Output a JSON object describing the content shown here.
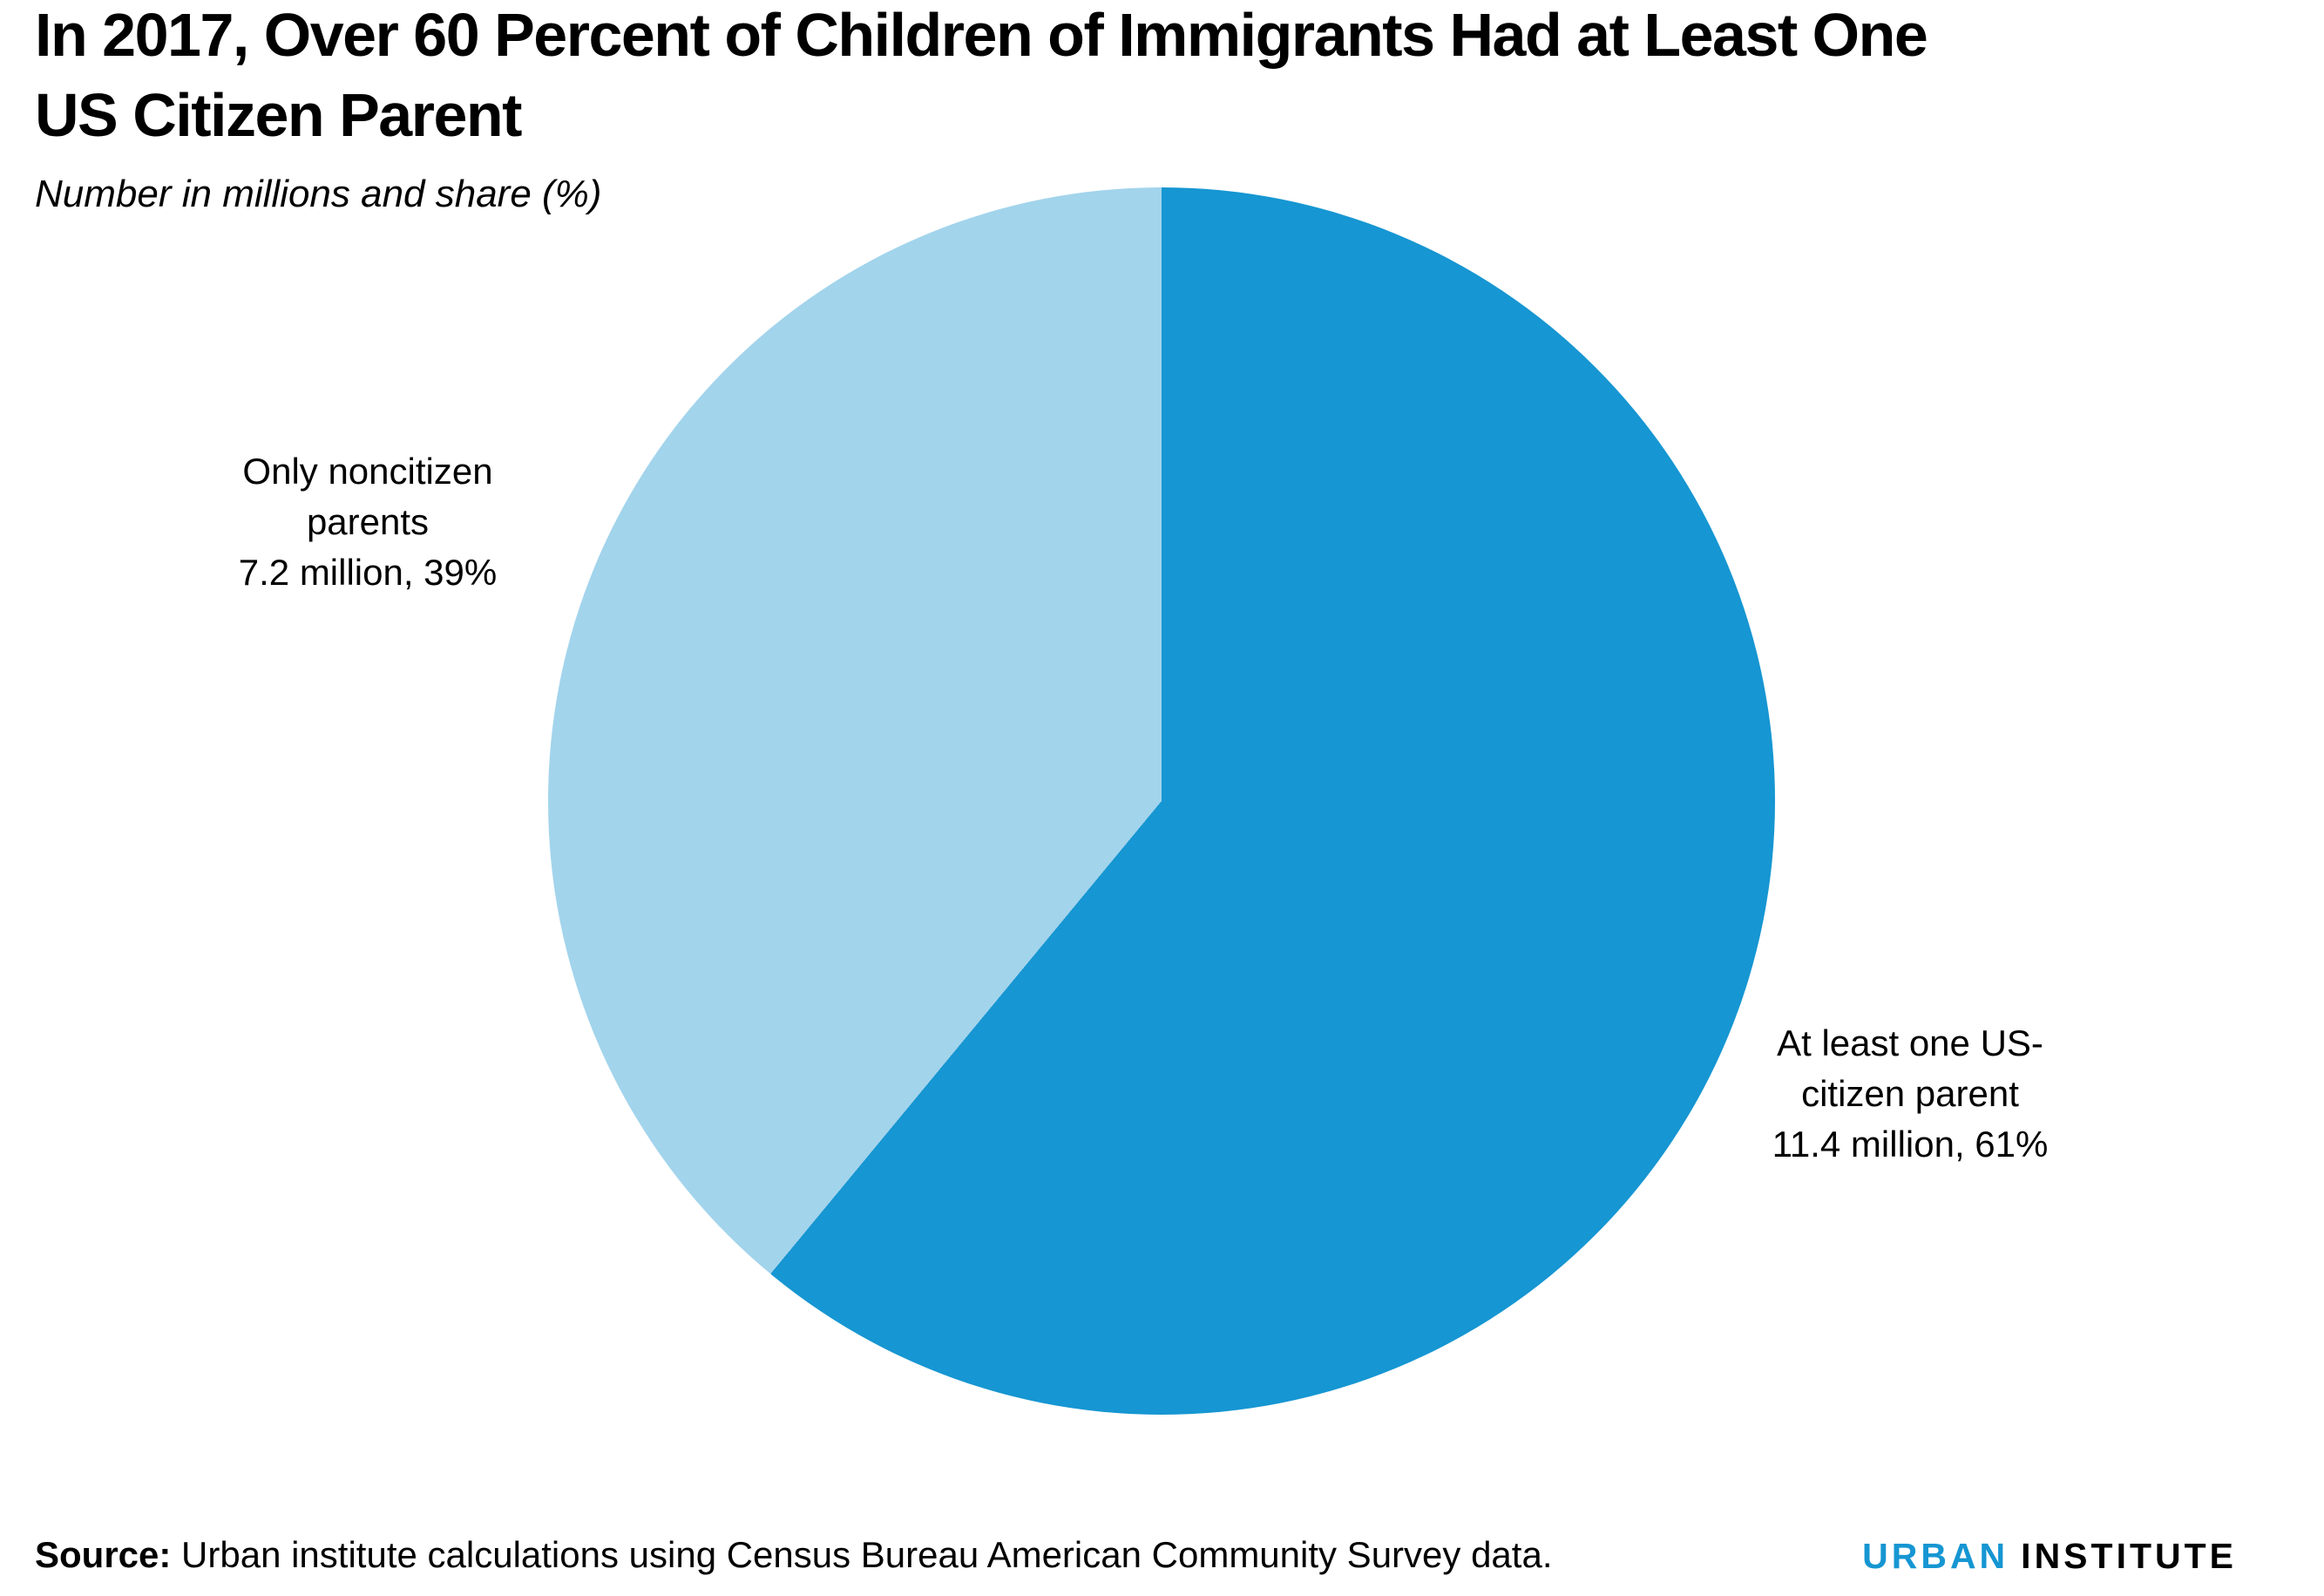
{
  "header": {
    "title_lines": [
      "In 2017, Over 60 Percent of Children of Immigrants Had at Least One",
      "US Citizen Parent"
    ],
    "subtitle": "Number in millions and share (%)"
  },
  "chart_data": {
    "type": "pie",
    "title": "In 2017, Over 60 Percent of Children of Immigrants Had at Least One US Citizen Parent",
    "subtitle": "Number in millions and share (%)",
    "units": "millions of children and share (%)",
    "start_angle_deg": 0,
    "direction": "clockwise",
    "slices": [
      {
        "label": "At least one US-citizen parent",
        "value_millions": 11.4,
        "share_pct": 61,
        "color": "#1696d2"
      },
      {
        "label": "Only noncitizen parents",
        "value_millions": 7.2,
        "share_pct": 39,
        "color": "#a2d4ec"
      }
    ],
    "legend_position": "labels-beside-slices",
    "annotations": {
      "left_label_lines": [
        "Only noncitizen",
        "parents",
        "7.2 million, 39%"
      ],
      "right_label_lines": [
        "At least one US-",
        "citizen parent",
        "11.4 million, 61%"
      ]
    }
  },
  "footer": {
    "source_prefix": "Source:",
    "source_text": " Urban institute calculations using Census Bureau American Community Survey data.",
    "logo": {
      "word1": "URBAN",
      "word2": "INSTITUTE",
      "word1_color": "#1696d2",
      "word2_color": "#000000"
    }
  },
  "colors": {
    "primary_blue": "#1696d2",
    "light_blue": "#a2d4ec",
    "text": "#000000",
    "background": "#ffffff"
  }
}
